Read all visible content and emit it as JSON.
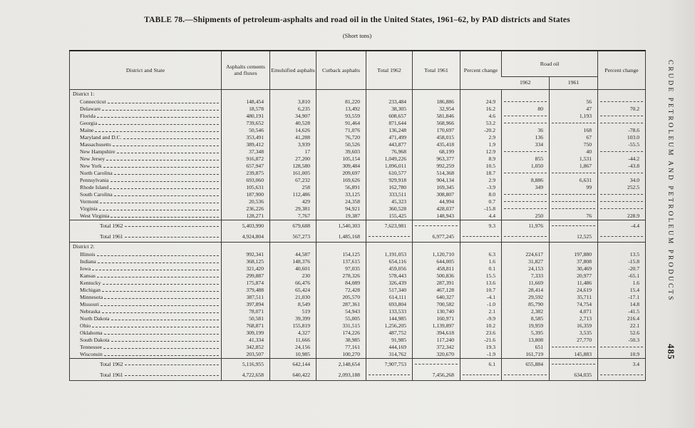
{
  "page": {
    "title": "TABLE 78.—Shipments of petroleum-asphalts and road oil in the United States, 1961–62, by PAD districts and States",
    "subtitle": "(Short tons)",
    "side_text": "CRUDE PETROLEUM AND PETROLEUM PRODUCTS",
    "page_number": "485"
  },
  "table": {
    "header": {
      "state": "District and State",
      "asphalt_cements": "Asphalts cements and fluxes",
      "emulsified": "Emulsified asphalts",
      "cutback": "Cutback asphalts",
      "total_1962": "Total 1962",
      "total_1961": "Total 1961",
      "percent_change": "Percent change",
      "road_oil": "Road oil",
      "road_1962": "1962",
      "road_1961": "1961",
      "road_percent_change": "Percent change"
    },
    "sections": [
      {
        "heading": "District 1:",
        "rows": [
          {
            "label": "Connecticut",
            "values": [
              "148,454",
              "3,810",
              "81,220",
              "233,484",
              "186,886",
              "24.9",
              "",
              "56",
              ""
            ]
          },
          {
            "label": "Delaware",
            "values": [
              "18,578",
              "6,235",
              "13,492",
              "38,305",
              "32,954",
              "16.2",
              "80",
              "47",
              "70.2"
            ]
          },
          {
            "label": "Florida",
            "values": [
              "480,191",
              "34,907",
              "93,559",
              "608,657",
              "581,846",
              "4.6",
              "",
              "1,193",
              ""
            ]
          },
          {
            "label": "Georgia",
            "values": [
              "739,652",
              "40,528",
              "91,464",
              "871,644",
              "568,966",
              "53.2",
              "",
              "",
              ""
            ]
          },
          {
            "label": "Maine",
            "values": [
              "50,546",
              "14,626",
              "71,076",
              "136,248",
              "170,697",
              "-20.2",
              "36",
              "168",
              "-78.6"
            ]
          },
          {
            "label": "Maryland and D.C.",
            "values": [
              "353,491",
              "41,288",
              "76,720",
              "471,499",
              "458,015",
              "2.9",
              "136",
              "67",
              "103.0"
            ]
          },
          {
            "label": "Massachusetts",
            "values": [
              "389,412",
              "3,939",
              "50,526",
              "443,877",
              "435,418",
              "1.9",
              "334",
              "750",
              "-55.5"
            ]
          },
          {
            "label": "New Hampshire",
            "values": [
              "37,348",
              "17",
              "39,603",
              "76,968",
              "68,199",
              "12.9",
              "",
              "40",
              ""
            ]
          },
          {
            "label": "New Jersey",
            "values": [
              "916,872",
              "27,200",
              "105,154",
              "1,049,226",
              "963,377",
              "8.9",
              "855",
              "1,531",
              "-44.2"
            ]
          },
          {
            "label": "New York",
            "values": [
              "657,947",
              "128,580",
              "309,484",
              "1,096,011",
              "992,259",
              "10.5",
              "1,050",
              "1,867",
              "-43.8"
            ]
          },
          {
            "label": "North Carolina",
            "values": [
              "239,875",
              "161,005",
              "209,697",
              "610,577",
              "514,368",
              "18.7",
              "",
              "",
              ""
            ]
          },
          {
            "label": "Pennsylvania",
            "values": [
              "693,060",
              "67,232",
              "169,626",
              "929,918",
              "904,134",
              "2.9",
              "8,886",
              "6,631",
              "34.0"
            ]
          },
          {
            "label": "Rhode Island",
            "values": [
              "105,631",
              "258",
              "56,891",
              "162,780",
              "169,345",
              "-3.9",
              "349",
              "99",
              "252.5"
            ]
          },
          {
            "label": "South Carolina",
            "values": [
              "187,900",
              "112,486",
              "33,125",
              "333,511",
              "308,807",
              "8.0",
              "",
              "",
              ""
            ]
          },
          {
            "label": "Vermont",
            "values": [
              "20,536",
              "429",
              "24,358",
              "45,323",
              "44,994",
              "0.7",
              "",
              "",
              ""
            ]
          },
          {
            "label": "Virginia",
            "values": [
              "236,226",
              "29,381",
              "94,921",
              "360,528",
              "428,037",
              "-15.8",
              "",
              "",
              ""
            ]
          },
          {
            "label": "West Virginia",
            "values": [
              "128,271",
              "7,767",
              "19,387",
              "155,425",
              "148,943",
              "4.4",
              "250",
              "76",
              "228.9"
            ]
          }
        ],
        "totals": [
          {
            "label": "Total 1962",
            "values": [
              "5,403,990",
              "679,688",
              "1,540,303",
              "7,623,981",
              "",
              "9.3",
              "11,976",
              "",
              "-4.4"
            ]
          },
          {
            "label": "Total 1961",
            "values": [
              "4,924,804",
              "567,273",
              "1,485,168",
              "",
              "6,977,245",
              "",
              "",
              "12,525",
              ""
            ]
          }
        ]
      },
      {
        "heading": "District 2:",
        "rows": [
          {
            "label": "Illinois",
            "values": [
              "992,341",
              "44,587",
              "154,125",
              "1,191,053",
              "1,120,710",
              "6.3",
              "224,617",
              "197,880",
              "13.5"
            ]
          },
          {
            "label": "Indiana",
            "values": [
              "368,125",
              "148,376",
              "137,615",
              "654,116",
              "644,005",
              "1.6",
              "31,827",
              "37,808",
              "-15.8"
            ]
          },
          {
            "label": "Iowa",
            "values": [
              "321,420",
              "40,601",
              "97,035",
              "459,056",
              "458,811",
              "0.1",
              "24,153",
              "30,469",
              "-20.7"
            ]
          },
          {
            "label": "Kansas",
            "values": [
              "299,887",
              "230",
              "278,326",
              "578,443",
              "500,836",
              "15.5",
              "7,333",
              "20,977",
              "-65.1"
            ]
          },
          {
            "label": "Kentucky",
            "values": [
              "175,874",
              "66,476",
              "84,089",
              "326,439",
              "287,391",
              "13.6",
              "11,669",
              "11,486",
              "1.6"
            ]
          },
          {
            "label": "Michigan",
            "values": [
              "379,488",
              "65,424",
              "72,428",
              "517,340",
              "467,128",
              "10.7",
              "28,414",
              "24,619",
              "15.4"
            ]
          },
          {
            "label": "Minnesota",
            "values": [
              "387,511",
              "21,030",
              "205,570",
              "614,111",
              "640,327",
              "-4.1",
              "29,592",
              "35,711",
              "-17.1"
            ]
          },
          {
            "label": "Missouri",
            "values": [
              "397,894",
              "8,549",
              "287,361",
              "693,804",
              "700,582",
              "-1.0",
              "85,790",
              "74,754",
              "14.8"
            ]
          },
          {
            "label": "Nebraska",
            "values": [
              "78,071",
              "519",
              "54,943",
              "133,533",
              "130,740",
              "2.1",
              "2,382",
              "4,071",
              "-41.5"
            ]
          },
          {
            "label": "North Dakota",
            "values": [
              "50,581",
              "39,399",
              "55,005",
              "144,985",
              "160,971",
              "-9.9",
              "8,585",
              "2,713",
              "216.4"
            ]
          },
          {
            "label": "Ohio",
            "values": [
              "768,871",
              "155,819",
              "331,515",
              "1,256,205",
              "1,139,897",
              "10.2",
              "19,959",
              "16,359",
              "22.1"
            ]
          },
          {
            "label": "Oklahoma",
            "values": [
              "309,199",
              "4,327",
              "174,226",
              "487,752",
              "394,618",
              "23.6",
              "5,395",
              "3,535",
              "52.6"
            ]
          },
          {
            "label": "South Dakota",
            "values": [
              "41,334",
              "11,666",
              "38,985",
              "91,985",
              "117,240",
              "-21.6",
              "13,808",
              "27,770",
              "-50.3"
            ]
          },
          {
            "label": "Tennessee",
            "values": [
              "342,852",
              "24,156",
              "77,161",
              "444,169",
              "372,342",
              "19.3",
              "651",
              "",
              ""
            ]
          },
          {
            "label": "Wisconsin",
            "values": [
              "203,507",
              "10,985",
              "100,270",
              "314,762",
              "320,670",
              "-1.9",
              "161,719",
              "145,883",
              "10.9"
            ]
          }
        ],
        "totals": [
          {
            "label": "Total 1962",
            "values": [
              "5,116,955",
              "642,144",
              "2,148,654",
              "7,907,753",
              "",
              "6.1",
              "655,884",
              "",
              "3.4"
            ]
          },
          {
            "label": "Total 1961",
            "values": [
              "4,722,658",
              "640,422",
              "2,093,188",
              "",
              "7,456,268",
              "",
              "",
              "634,035",
              ""
            ]
          }
        ]
      }
    ]
  }
}
